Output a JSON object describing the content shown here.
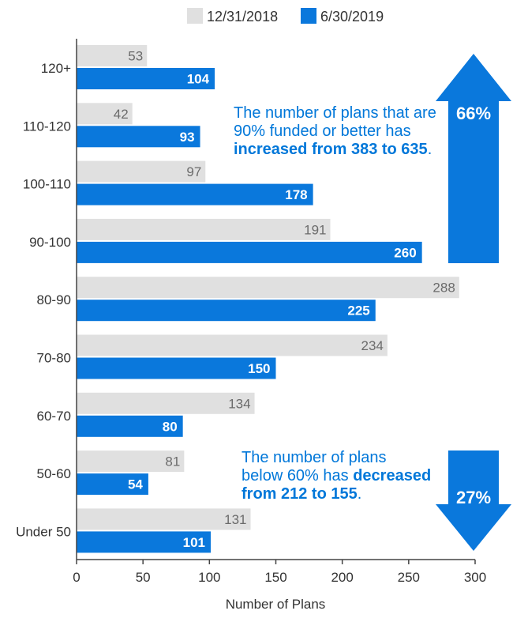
{
  "colors": {
    "series1": "#e0e0e0",
    "series2": "#0a78dc",
    "axis": "#333333",
    "value_dark": "#6b6b6b",
    "value_light": "#ffffff",
    "annotation": "#0077d9"
  },
  "chart_data": {
    "type": "bar",
    "orientation": "horizontal",
    "categories": [
      "120+",
      "110-120",
      "100-110",
      "90-100",
      "80-90",
      "70-80",
      "60-70",
      "50-60",
      "Under 50"
    ],
    "series": [
      {
        "name": "12/31/2018",
        "values": [
          53,
          42,
          97,
          191,
          288,
          234,
          134,
          81,
          131
        ]
      },
      {
        "name": "6/30/2019",
        "values": [
          104,
          93,
          178,
          260,
          225,
          150,
          80,
          54,
          101
        ]
      }
    ],
    "xlabel": "Number of Plans",
    "ylabel": "",
    "xlim": [
      0,
      300
    ],
    "xticks": [
      0,
      50,
      100,
      150,
      200,
      250,
      300
    ],
    "grid": false,
    "legend_position": "top",
    "data_labels": true
  },
  "annotations": {
    "top": {
      "line1": "The number of plans that are",
      "line2": "90% funded or better has",
      "line3_bold": "increased from 383 to 635",
      "line3_end": ".",
      "arrow_label": "66%"
    },
    "bottom": {
      "line1": "The number of plans",
      "line2_pre": "below 60% has ",
      "line2_bold": "decreased",
      "line3_bold": "from 212 to 155",
      "line3_end": ".",
      "arrow_label": "27%"
    }
  }
}
